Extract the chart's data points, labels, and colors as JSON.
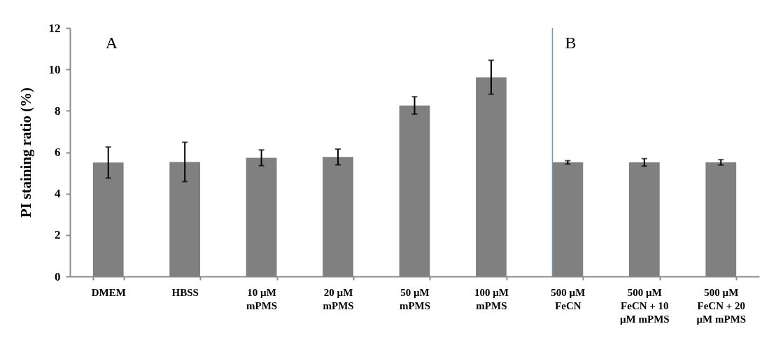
{
  "chart_data": {
    "type": "bar",
    "ylabel": "PI staining ratio (%)",
    "categories": [
      "DMEM",
      "HBSS",
      "10 µM\nmPMS",
      "20 µM\nmPMS",
      "50 µM\nmPMS",
      "100 µM\nmPMS",
      "500 µM\nFeCN",
      "500 µM\nFeCN + 10\nµM mPMS",
      "500 µM\nFeCN + 20\nµM mPMS"
    ],
    "values": [
      5.5,
      5.53,
      5.73,
      5.77,
      8.26,
      9.62,
      5.51,
      5.51,
      5.51
    ],
    "errors": [
      0.75,
      0.95,
      0.38,
      0.38,
      0.42,
      0.82,
      0.08,
      0.18,
      0.13
    ],
    "color": "#808080",
    "ylim": [
      0,
      12
    ],
    "yticks": [
      0,
      2,
      4,
      6,
      8,
      10,
      12
    ],
    "grid": false,
    "ref_lines": [
      {
        "axis": "x",
        "value": "500 µM\nFeCN",
        "color": "#5b9bd5"
      }
    ],
    "annotations": [
      "A",
      "B"
    ]
  }
}
